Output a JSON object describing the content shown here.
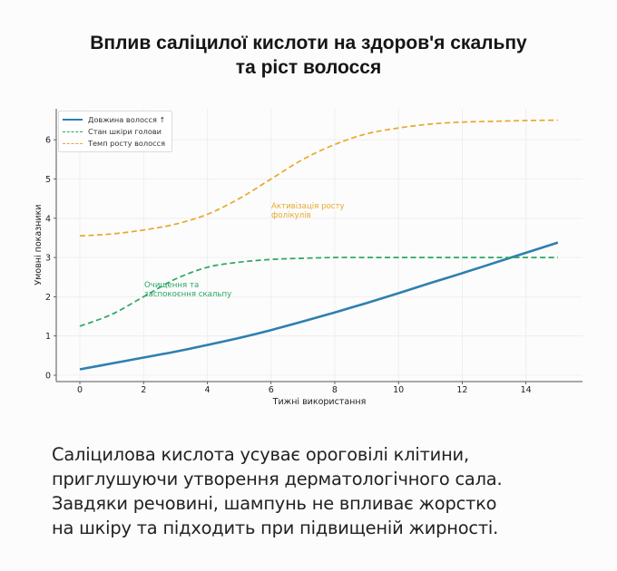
{
  "title": {
    "line1": "Вплив саліцилої кислоти на здоров'я скальпу",
    "line2": "та ріст волосся"
  },
  "colors": {
    "hair_length": "#2e7fb0",
    "scalp_condition": "#2aa765",
    "growth_rate": "#e8a82b",
    "background": "#fcfcfc"
  },
  "chart_data": {
    "type": "line",
    "title": "Вплив саліцилої кислоти на здоров'я скальпу та ріст волосся",
    "xlabel": "Тижні використання",
    "ylabel": "Умовні показники",
    "xlim": [
      -0.75,
      15.75
    ],
    "ylim": [
      -0.15,
      6.8
    ],
    "xticks": [
      0,
      2,
      4,
      6,
      8,
      10,
      12,
      14
    ],
    "yticks": [
      0,
      1,
      2,
      3,
      4,
      5,
      6
    ],
    "grid": true,
    "legend_position": "upper left",
    "x": [
      0,
      1,
      2,
      3,
      4,
      5,
      6,
      7,
      8,
      9,
      10,
      11,
      12,
      13,
      14,
      15
    ],
    "series": [
      {
        "name": "Довжина волосся ↑",
        "style": "solid",
        "color": "#2e7fb0",
        "values": [
          0.15,
          0.3,
          0.45,
          0.6,
          0.77,
          0.95,
          1.15,
          1.37,
          1.6,
          1.84,
          2.09,
          2.35,
          2.6,
          2.86,
          3.12,
          3.38
        ]
      },
      {
        "name": "Стан шкіри голови",
        "style": "dashed",
        "color": "#2aa765",
        "values": [
          1.25,
          1.55,
          2.0,
          2.45,
          2.75,
          2.88,
          2.95,
          2.98,
          3.0,
          3.0,
          3.0,
          3.0,
          3.0,
          3.0,
          3.0,
          3.0
        ]
      },
      {
        "name": "Темп росту волосся",
        "style": "dashed",
        "color": "#e8a82b",
        "values": [
          3.55,
          3.6,
          3.7,
          3.85,
          4.1,
          4.5,
          5.0,
          5.5,
          5.88,
          6.15,
          6.3,
          6.4,
          6.45,
          6.47,
          6.49,
          6.5
        ]
      }
    ],
    "annotations": [
      {
        "text": "Активізація росту\nфолікулів",
        "x": 6,
        "y": 4.2,
        "color": "#e8a82b"
      },
      {
        "text": "Очищення та\nзаспокоєння скальпу",
        "x": 2,
        "y": 2.1,
        "color": "#2aa765"
      }
    ]
  },
  "legend": {
    "items": [
      {
        "label": "Довжина волосся ↑"
      },
      {
        "label": "Стан шкіри голови"
      },
      {
        "label": "Темп росту волосся"
      }
    ]
  },
  "annotations": {
    "growth": {
      "line1": "Активізація росту",
      "line2": "фолікулів"
    },
    "scalp": {
      "line1": "Очищення та",
      "line2": "заспокоєння скальпу"
    }
  },
  "axes": {
    "xlabel": "Тижні використання",
    "ylabel": "Умовні показники",
    "xticks": [
      "0",
      "2",
      "4",
      "6",
      "8",
      "10",
      "12",
      "14"
    ],
    "yticks": [
      "0",
      "1",
      "2",
      "3",
      "4",
      "5",
      "6"
    ]
  },
  "description": {
    "line1": "Саліцилова кислота усуває ороговілі клітини,",
    "line2": "приглушуючи утворення дерматологічного сала.",
    "line3": "Завдяки речовині, шампунь не впливає жорстко",
    "line4": "на шкіру та підходить при підвищеній жирності."
  }
}
